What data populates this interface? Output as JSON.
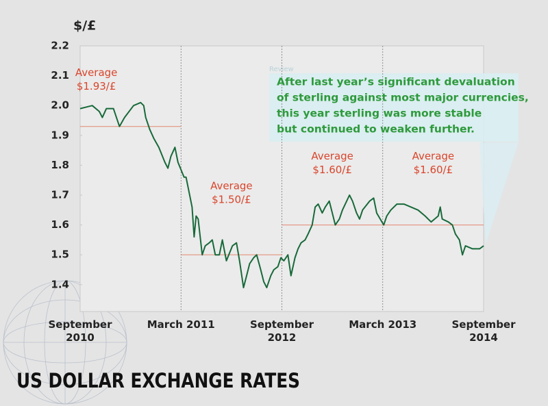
{
  "chart_data": {
    "type": "line",
    "title": "US DOLLAR EXCHANGE RATES",
    "y_label": "$/£",
    "xlim": [
      0,
      4
    ],
    "xticks": [
      {
        "value": 0,
        "label": "September 2010"
      },
      {
        "value": 1,
        "label": "March 2011"
      },
      {
        "value": 2,
        "label": "September 2012"
      },
      {
        "value": 3,
        "label": "March 2013"
      },
      {
        "value": 4,
        "label": "September 2014"
      }
    ],
    "ylim": [
      1.31,
      2.2
    ],
    "yticks": [
      2.2,
      2.1,
      {
        "value": 2,
        "label": "2.0"
      },
      1.9,
      1.8,
      1.7,
      1.6,
      1.5,
      1.4
    ],
    "series": [
      {
        "color": "#17693a",
        "x": [
          0,
          0.12,
          0.19,
          0.22,
          0.26,
          0.33,
          0.39,
          0.44,
          0.53,
          0.6,
          0.63,
          0.65,
          0.69,
          0.73,
          0.78,
          0.84,
          0.87,
          0.9,
          0.94,
          0.97,
          1.03,
          1.05,
          1.08,
          1.11,
          1.13,
          1.15,
          1.17,
          1.21,
          1.24,
          1.28,
          1.31,
          1.34,
          1.38,
          1.41,
          1.45,
          1.51,
          1.55,
          1.58,
          1.62,
          1.65,
          1.68,
          1.72,
          1.75,
          1.79,
          1.82,
          1.85,
          1.89,
          1.92,
          1.96,
          1.99,
          2.02,
          2.06,
          2.09,
          2.13,
          2.16,
          2.19,
          2.23,
          2.26,
          2.3,
          2.33,
          2.36,
          2.4,
          2.43,
          2.47,
          2.5,
          2.53,
          2.57,
          2.6,
          2.67,
          2.7,
          2.74,
          2.77,
          2.8,
          2.87,
          2.91,
          2.94,
          3.01,
          3.04,
          3.08,
          3.14,
          3.21,
          3.28,
          3.35,
          3.42,
          3.48,
          3.55,
          3.57,
          3.59,
          3.65,
          3.69,
          3.72,
          3.76,
          3.79,
          3.82,
          3.89,
          3.96,
          4
        ],
        "values": [
          1.99,
          2.0,
          1.98,
          1.96,
          1.99,
          1.99,
          1.93,
          1.96,
          2.0,
          2.01,
          2.0,
          1.96,
          1.92,
          1.89,
          1.86,
          1.81,
          1.79,
          1.83,
          1.86,
          1.81,
          1.76,
          1.76,
          1.71,
          1.66,
          1.56,
          1.63,
          1.62,
          1.5,
          1.53,
          1.54,
          1.55,
          1.5,
          1.5,
          1.55,
          1.48,
          1.53,
          1.54,
          1.48,
          1.39,
          1.43,
          1.47,
          1.49,
          1.5,
          1.45,
          1.41,
          1.39,
          1.43,
          1.45,
          1.46,
          1.49,
          1.48,
          1.5,
          1.43,
          1.49,
          1.52,
          1.54,
          1.55,
          1.57,
          1.6,
          1.66,
          1.67,
          1.64,
          1.66,
          1.68,
          1.64,
          1.6,
          1.62,
          1.65,
          1.7,
          1.68,
          1.64,
          1.62,
          1.65,
          1.68,
          1.69,
          1.64,
          1.6,
          1.63,
          1.65,
          1.67,
          1.67,
          1.66,
          1.65,
          1.63,
          1.61,
          1.63,
          1.66,
          1.62,
          1.61,
          1.6,
          1.57,
          1.55,
          1.5,
          1.53,
          1.52,
          1.52,
          1.53
        ]
      }
    ],
    "averages": [
      {
        "title": "Average",
        "value": 1.93,
        "value_label": "$1.93/£",
        "x": [
          0,
          1
        ]
      },
      {
        "title": "Average",
        "value": 1.5,
        "value_label": "$1.50/£",
        "x": [
          1,
          2
        ]
      },
      {
        "title": "Average",
        "value": 1.6,
        "value_label": "$1.60/£",
        "x": [
          2,
          3
        ]
      },
      {
        "title": "Average",
        "value": 1.6,
        "value_label": "$1.60/£",
        "x": [
          3,
          4
        ]
      }
    ],
    "annotation": {
      "tag": "Review",
      "lines": [
        "After last year’s significant devaluation",
        "of sterling against most major currencies,",
        "this year sterling was more stable",
        "but continued to weaken further."
      ]
    }
  }
}
